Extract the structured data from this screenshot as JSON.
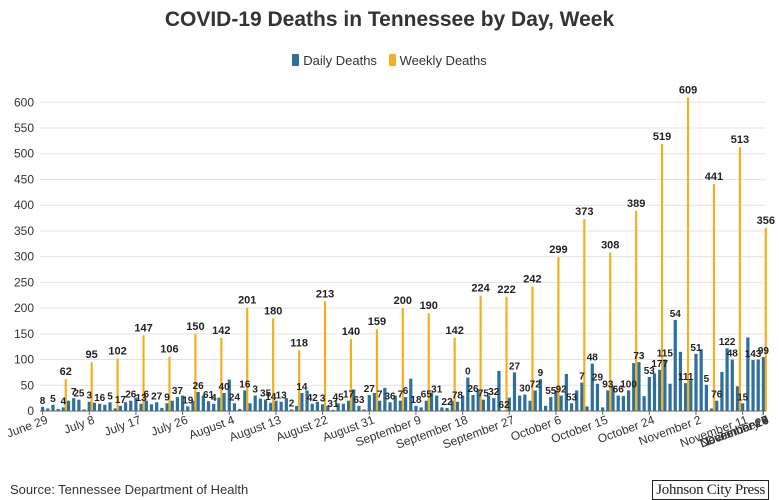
{
  "chart_data": {
    "type": "bar",
    "title": "COVID-19 Deaths in Tennessee by Day, Week",
    "xlabel": "",
    "ylabel": "",
    "ylim": [
      0,
      620
    ],
    "yticks": [
      0,
      50,
      100,
      150,
      200,
      250,
      300,
      350,
      400,
      450,
      500,
      550,
      600
    ],
    "x_tick_labels": [
      "June 29",
      "July 8",
      "July 17",
      "July 26",
      "August 4",
      "August 13",
      "August 22",
      "August 31",
      "September 9",
      "September 18",
      "September 27",
      "October 6",
      "October 15",
      "October 24",
      "November 2",
      "November 11",
      "November 20",
      "November 29",
      "December 8",
      "December 17",
      "December 26",
      "January 4"
    ],
    "series": [
      {
        "name": "Daily Deaths",
        "color": "#2e6f9e",
        "values": [
          8,
          5,
          12,
          4,
          7,
          20,
          25,
          22,
          3,
          18,
          16,
          14,
          12,
          17,
          5,
          10,
          17,
          20,
          26,
          14,
          20,
          13,
          17,
          6,
          15,
          20,
          27,
          30,
          9,
          20,
          37,
          30,
          19,
          14,
          26,
          35,
          61,
          15,
          4,
          40,
          15,
          30,
          24,
          22,
          16,
          20,
          18,
          25,
          3,
          10,
          35,
          40,
          14,
          18,
          13,
          10,
          2,
          15,
          14,
          20,
          42,
          10,
          3,
          31,
          35,
          20,
          45,
          17,
          30,
          20,
          27,
          63,
          10,
          7,
          20,
          36,
          30,
          7,
          6,
          20,
          18,
          30,
          65,
          31,
          40,
          22,
          30,
          25,
          78,
          0,
          26,
          75,
          30,
          32,
          20,
          40,
          62,
          10,
          27,
          40,
          30,
          72,
          15,
          40,
          55,
          9,
          92,
          53,
          7,
          40,
          48,
          30,
          29,
          40,
          93,
          95,
          29,
          66,
          73,
          80,
          100,
          53,
          177,
          115,
          54,
          60,
          111,
          120,
          51,
          5,
          20,
          76,
          122,
          100,
          48,
          15,
          143,
          99,
          100,
          105
        ]
      },
      {
        "name": "Weekly Deaths",
        "color": "#f2b01e",
        "values": [
          62,
          95,
          102,
          147,
          106,
          150,
          142,
          201,
          180,
          118,
          213,
          140,
          159,
          200,
          190,
          142,
          224,
          222,
          242,
          299,
          373,
          308,
          389,
          519,
          609,
          441,
          513,
          356
        ]
      }
    ],
    "daily_data_labels": [
      8,
      5,
      4,
      7,
      25,
      3,
      16,
      5,
      17,
      26,
      13,
      6,
      27,
      9,
      37,
      19,
      26,
      61,
      4,
      40,
      24,
      16,
      3,
      35,
      14,
      13,
      2,
      14,
      42,
      3,
      31,
      45,
      17,
      63,
      27,
      7,
      36,
      7,
      6,
      18,
      65,
      31,
      22,
      78,
      0,
      26,
      75,
      32,
      62,
      27,
      30,
      72,
      9,
      55,
      92,
      53,
      7,
      48,
      29,
      93,
      66,
      100,
      73,
      53,
      177,
      115,
      54,
      111,
      51,
      5,
      76,
      122,
      48,
      15,
      143,
      99
    ]
  },
  "footer": {
    "source": "Source: Tennessee Department of Health",
    "brand": "Johnson City Press"
  }
}
